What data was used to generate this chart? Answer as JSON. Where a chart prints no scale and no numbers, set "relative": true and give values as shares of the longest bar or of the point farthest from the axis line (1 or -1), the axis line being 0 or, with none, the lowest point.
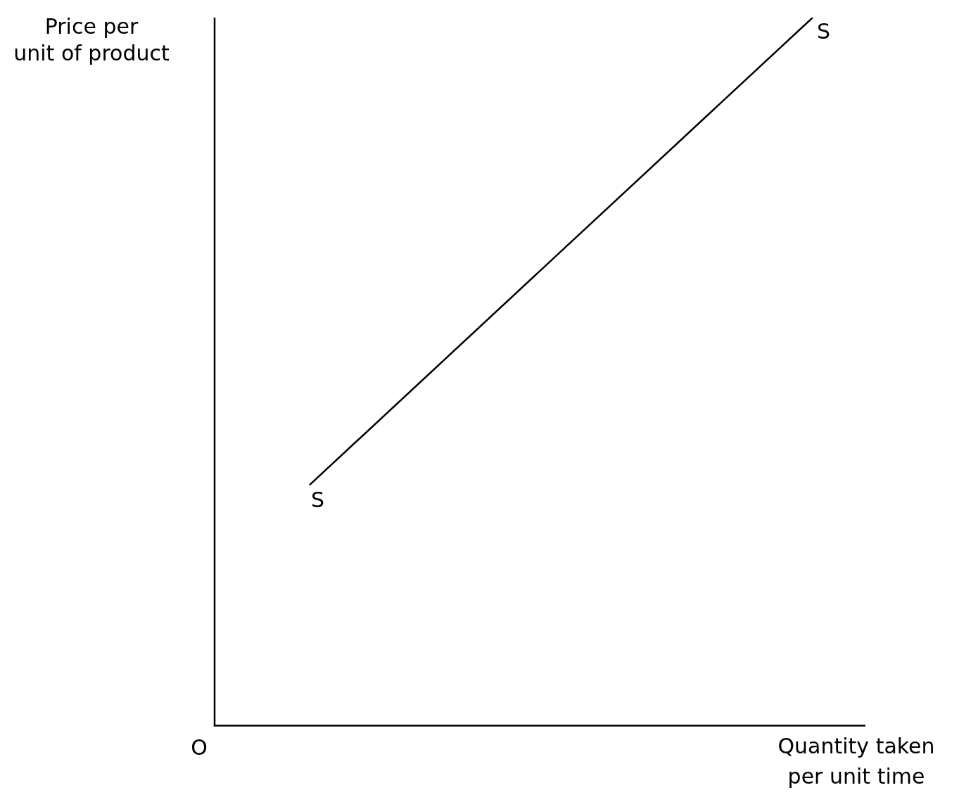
{
  "chart_data": {
    "type": "line",
    "relative": true,
    "xlabel": "Quantity taken\nper unit time",
    "ylabel": "Price per\nunit of product",
    "categories": [
      null,
      null
    ],
    "grid": false,
    "legend": false,
    "marker": "none",
    "line_style": "solid",
    "series": [
      {
        "color": "#000000",
        "values": [
          0.34,
          1
        ]
      }
    ],
    "annotations": [
      "S",
      "S",
      "O"
    ]
  }
}
